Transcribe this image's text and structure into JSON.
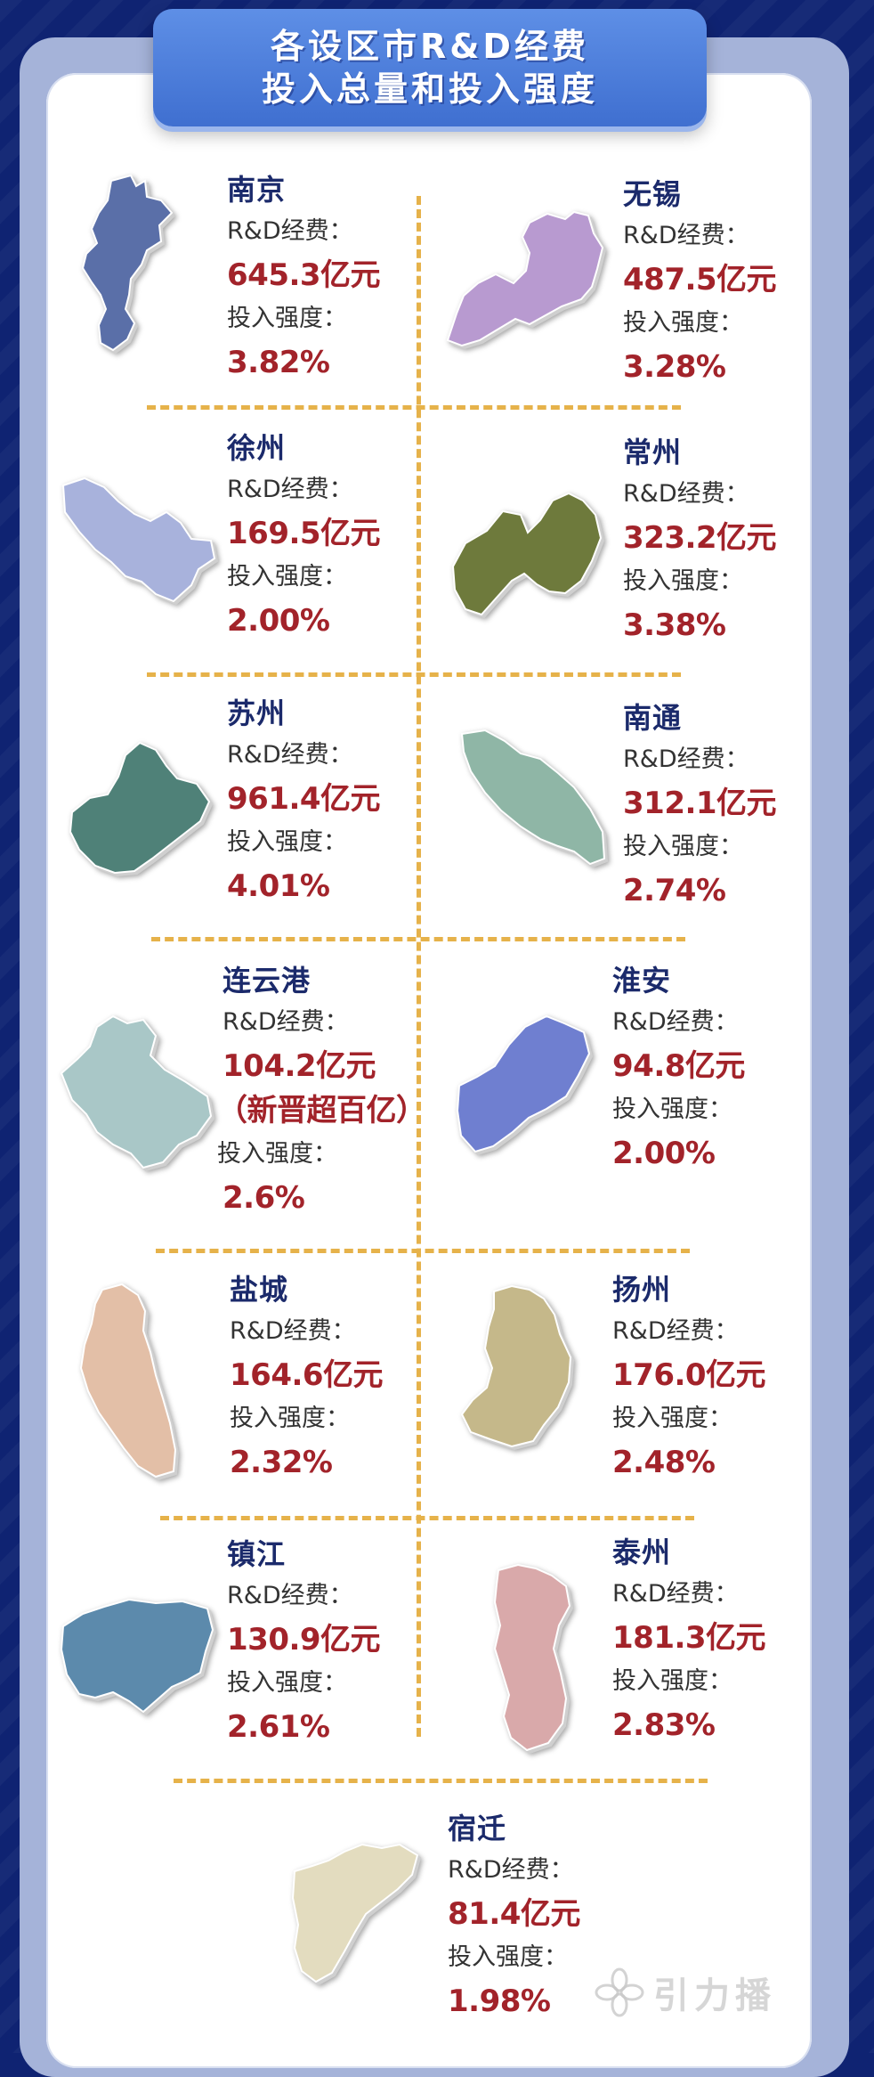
{
  "title": {
    "line1": "各设区市R&D经费",
    "line2": "投入总量和投入强度"
  },
  "labels": {
    "funding": "R&D经费：",
    "intensity": "投入强度："
  },
  "cities": [
    {
      "name": "南京",
      "funding": "645.3亿元",
      "intensity": "3.82%",
      "color": "#5a6fa8"
    },
    {
      "name": "无锡",
      "funding": "487.5亿元",
      "intensity": "3.28%",
      "color": "#b89ad0"
    },
    {
      "name": "徐州",
      "funding": "169.5亿元",
      "intensity": "2.00%",
      "color": "#a8b2dc"
    },
    {
      "name": "常州",
      "funding": "323.2亿元",
      "intensity": "3.38%",
      "color": "#6e7a3c"
    },
    {
      "name": "苏州",
      "funding": "961.4亿元",
      "intensity": "4.01%",
      "color": "#4f8178"
    },
    {
      "name": "南通",
      "funding": "312.1亿元",
      "intensity": "2.74%",
      "color": "#8fb6a6"
    },
    {
      "name": "连云港",
      "funding": "104.2亿元",
      "note": "（新晋超百亿）",
      "intensity": "2.6%",
      "color": "#a9c7c7"
    },
    {
      "name": "淮安",
      "funding": "94.8亿元",
      "intensity": "2.00%",
      "color": "#6f7fd0"
    },
    {
      "name": "盐城",
      "funding": "164.6亿元",
      "intensity": "2.32%",
      "color": "#e3bfa7"
    },
    {
      "name": "扬州",
      "funding": "176.0亿元",
      "intensity": "2.48%",
      "color": "#c5b88a"
    },
    {
      "name": "镇江",
      "funding": "130.9亿元",
      "intensity": "2.61%",
      "color": "#5c8aac"
    },
    {
      "name": "泰州",
      "funding": "181.3亿元",
      "intensity": "2.83%",
      "color": "#d9a9aa"
    },
    {
      "name": "宿迁",
      "funding": "81.4亿元",
      "intensity": "1.98%",
      "color": "#e3dcbf"
    }
  ],
  "watermark": "引力播"
}
